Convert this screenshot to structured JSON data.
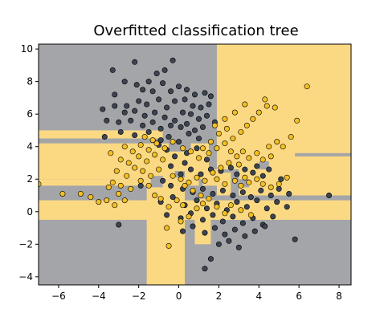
{
  "chart_data": {
    "type": "scatter",
    "title": "Overfitted classification tree",
    "xlabel": "",
    "ylabel": "",
    "xlim": [
      -7,
      8.6
    ],
    "ylim": [
      -4.5,
      10.3
    ],
    "x_ticks": [
      -6,
      -4,
      -2,
      0,
      2,
      4,
      6,
      8
    ],
    "y_ticks": [
      -4,
      -2,
      0,
      2,
      4,
      6,
      8,
      10
    ],
    "grid": false,
    "legend": "none",
    "colors": {
      "region_class_0": "#a3a5a8",
      "region_class_1": "#fbd983",
      "point_class_0": "#3d4451",
      "point_class_1": "#f4bf22",
      "point_edge": "#000000"
    },
    "decision_regions_class_1": [
      {
        "x": [
          1.9,
          8.6
        ],
        "y": [
          1.0,
          10.3
        ]
      },
      {
        "x": [
          -7,
          1.5
        ],
        "y": [
          2.0,
          4.2
        ]
      },
      {
        "x": [
          -7,
          -0.8
        ],
        "y": [
          4.5,
          5.0
        ]
      },
      {
        "x": [
          -7,
          1.0
        ],
        "y": [
          1.6,
          2.0
        ]
      },
      {
        "x": [
          -0.3,
          1.0
        ],
        "y": [
          2.5,
          3.2
        ]
      },
      {
        "x": [
          -7,
          8.6
        ],
        "y": [
          -0.5,
          0.7
        ]
      },
      {
        "x": [
          -1.6,
          0.3
        ],
        "y": [
          -4.5,
          1.6
        ]
      },
      {
        "x": [
          0.8,
          1.6
        ],
        "y": [
          -2.0,
          0.8
        ]
      },
      {
        "x": [
          1.2,
          2.7
        ],
        "y": [
          1.6,
          2.6
        ]
      },
      {
        "x": [
          -0.1,
          0.4
        ],
        "y": [
          3.5,
          4.2
        ]
      }
    ],
    "decision_regions_class_0": [
      {
        "x": [
          -0.5,
          0.6
        ],
        "y": [
          3.7,
          4.6
        ]
      },
      {
        "x": [
          -1.4,
          -0.8
        ],
        "y": [
          1.5,
          2.2
        ]
      },
      {
        "x": [
          -0.2,
          0.3
        ],
        "y": [
          2.1,
          2.5
        ]
      },
      {
        "x": [
          0.8,
          1.5
        ],
        "y": [
          1.2,
          1.5
        ]
      },
      {
        "x": [
          2.6,
          3.0
        ],
        "y": [
          1.0,
          2.6
        ]
      },
      {
        "x": [
          3.0,
          3.5
        ],
        "y": [
          1.5,
          2.0
        ]
      },
      {
        "x": [
          5.8,
          8.6
        ],
        "y": [
          3.4,
          3.6
        ]
      },
      {
        "x": [
          2.0,
          2.6
        ],
        "y": [
          2.4,
          2.6
        ]
      },
      {
        "x": [
          4.0,
          4.5
        ],
        "y": [
          2.6,
          3.1
        ]
      }
    ],
    "series": [
      {
        "class": 0,
        "points": [
          [
            -2.2,
            9.2
          ],
          [
            -0.3,
            9.3
          ],
          [
            -3.3,
            8.7
          ],
          [
            -2.7,
            8.0
          ],
          [
            -2.1,
            7.8
          ],
          [
            -1.5,
            8.0
          ],
          [
            -1.1,
            8.5
          ],
          [
            -0.7,
            8.7
          ],
          [
            -1.8,
            7.5
          ],
          [
            -1.3,
            7.4
          ],
          [
            -0.8,
            7.9
          ],
          [
            -0.4,
            7.4
          ],
          [
            0.0,
            7.7
          ],
          [
            0.4,
            7.5
          ],
          [
            0.8,
            7.2
          ],
          [
            1.3,
            7.3
          ],
          [
            1.6,
            7.1
          ],
          [
            -3.2,
            7.2
          ],
          [
            -2.6,
            6.5
          ],
          [
            -2.0,
            6.8
          ],
          [
            -1.6,
            6.6
          ],
          [
            -1.0,
            6.9
          ],
          [
            -0.6,
            6.4
          ],
          [
            -0.2,
            6.8
          ],
          [
            0.3,
            6.9
          ],
          [
            0.7,
            6.5
          ],
          [
            1.1,
            6.4
          ],
          [
            1.5,
            6.6
          ],
          [
            -3.8,
            6.3
          ],
          [
            -3.2,
            6.5
          ],
          [
            -2.7,
            6.1
          ],
          [
            -2.2,
            6.2
          ],
          [
            -1.7,
            5.9
          ],
          [
            -1.2,
            6.1
          ],
          [
            -0.7,
            5.8
          ],
          [
            -0.2,
            5.6
          ],
          [
            0.2,
            6.1
          ],
          [
            0.6,
            6.0
          ],
          [
            1.0,
            5.7
          ],
          [
            1.4,
            5.9
          ],
          [
            1.8,
            5.5
          ],
          [
            -3.6,
            5.6
          ],
          [
            -3.0,
            5.5
          ],
          [
            -2.4,
            5.6
          ],
          [
            -1.8,
            5.3
          ],
          [
            -1.3,
            5.5
          ],
          [
            -0.9,
            5.1
          ],
          [
            -0.4,
            5.3
          ],
          [
            0.1,
            5.2
          ],
          [
            0.4,
            5.4
          ],
          [
            0.8,
            5.0
          ],
          [
            1.2,
            5.2
          ],
          [
            -3.7,
            4.6
          ],
          [
            -2.9,
            4.9
          ],
          [
            -2.2,
            4.7
          ],
          [
            -1.5,
            4.9
          ],
          [
            -0.9,
            4.4
          ],
          [
            -0.5,
            4.6
          ],
          [
            0.0,
            4.3
          ],
          [
            0.5,
            4.8
          ],
          [
            1.0,
            4.5
          ],
          [
            -0.6,
            3.8
          ],
          [
            -0.2,
            3.4
          ],
          [
            0.4,
            3.6
          ],
          [
            0.9,
            3.9
          ],
          [
            1.4,
            3.2
          ],
          [
            -0.4,
            2.8
          ],
          [
            0.1,
            2.3
          ],
          [
            0.6,
            2.6
          ],
          [
            1.1,
            2.3
          ],
          [
            1.6,
            2.6
          ],
          [
            2.1,
            2.5
          ],
          [
            2.6,
            2.7
          ],
          [
            2.9,
            2.3
          ],
          [
            3.3,
            2.6
          ],
          [
            3.7,
            2.4
          ],
          [
            3.9,
            2.8
          ],
          [
            4.2,
            2.2
          ],
          [
            4.5,
            2.6
          ],
          [
            -0.8,
            1.9
          ],
          [
            -0.4,
            1.6
          ],
          [
            0.2,
            1.4
          ],
          [
            0.7,
            1.2
          ],
          [
            1.2,
            1.4
          ],
          [
            1.7,
            1.1
          ],
          [
            2.2,
            1.3
          ],
          [
            2.7,
            1.0
          ],
          [
            3.2,
            1.2
          ],
          [
            3.6,
            0.9
          ],
          [
            4.1,
            1.3
          ],
          [
            4.6,
            1.0
          ],
          [
            5.0,
            1.4
          ],
          [
            5.5,
            1.1
          ],
          [
            -0.9,
            0.6
          ],
          [
            -0.3,
            0.9
          ],
          [
            0.3,
            0.4
          ],
          [
            0.9,
            0.7
          ],
          [
            1.4,
            0.2
          ],
          [
            1.9,
            0.5
          ],
          [
            2.4,
            0.1
          ],
          [
            2.9,
            0.6
          ],
          [
            3.4,
            0.3
          ],
          [
            3.9,
            0.7
          ],
          [
            4.4,
            0.2
          ],
          [
            4.9,
            0.6
          ],
          [
            5.4,
            0.3
          ],
          [
            -0.6,
            -0.2
          ],
          [
            0.1,
            -0.4
          ],
          [
            0.6,
            -0.1
          ],
          [
            1.2,
            -0.5
          ],
          [
            1.7,
            -0.2
          ],
          [
            2.2,
            -0.6
          ],
          [
            2.7,
            -0.3
          ],
          [
            3.2,
            -0.7
          ],
          [
            3.7,
            -0.4
          ],
          [
            4.2,
            -0.8
          ],
          [
            4.7,
            -0.3
          ],
          [
            0.2,
            -1.2
          ],
          [
            0.7,
            -0.9
          ],
          [
            1.3,
            -1.3
          ],
          [
            1.8,
            -1.0
          ],
          [
            2.3,
            -1.4
          ],
          [
            2.8,
            -1.1
          ],
          [
            3.3,
            -1.5
          ],
          [
            3.8,
            -1.2
          ],
          [
            4.3,
            -0.9
          ],
          [
            2.0,
            -2.0
          ],
          [
            2.5,
            -1.8
          ],
          [
            3.0,
            -2.2
          ],
          [
            5.8,
            -1.7
          ],
          [
            1.3,
            -3.5
          ],
          [
            1.6,
            -2.9
          ],
          [
            -3.0,
            -0.8
          ],
          [
            7.5,
            1.0
          ],
          [
            5.1,
            2.0
          ],
          [
            -1.9,
            1.6
          ],
          [
            -1.0,
            4.1
          ],
          [
            0.3,
            3.0
          ]
        ]
      },
      {
        "class": 1,
        "points": [
          [
            -7.0,
            1.7
          ],
          [
            -5.8,
            1.1
          ],
          [
            -4.9,
            1.1
          ],
          [
            -4.4,
            0.9
          ],
          [
            -4.0,
            0.6
          ],
          [
            -3.6,
            0.7
          ],
          [
            -3.2,
            0.4
          ],
          [
            -3.0,
            1.1
          ],
          [
            -2.7,
            0.7
          ],
          [
            -3.5,
            1.5
          ],
          [
            -3.3,
            1.8
          ],
          [
            -2.9,
            1.6
          ],
          [
            -2.4,
            1.4
          ],
          [
            -1.9,
            1.9
          ],
          [
            -1.5,
            1.6
          ],
          [
            -1.2,
            1.0
          ],
          [
            -3.1,
            2.5
          ],
          [
            -2.6,
            2.2
          ],
          [
            -2.2,
            2.7
          ],
          [
            -1.8,
            2.5
          ],
          [
            -1.4,
            2.2
          ],
          [
            -1.0,
            2.6
          ],
          [
            -2.9,
            3.2
          ],
          [
            -2.5,
            3.0
          ],
          [
            -2.0,
            3.4
          ],
          [
            -1.6,
            3.1
          ],
          [
            -1.2,
            3.5
          ],
          [
            -0.8,
            3.2
          ],
          [
            -3.4,
            3.6
          ],
          [
            -2.7,
            4.0
          ],
          [
            -2.3,
            3.7
          ],
          [
            -1.9,
            4.1
          ],
          [
            -1.5,
            3.8
          ],
          [
            -1.1,
            4.2
          ],
          [
            -0.7,
            3.9
          ],
          [
            -0.3,
            4.3
          ],
          [
            -1.7,
            4.6
          ],
          [
            -1.3,
            4.4
          ],
          [
            0.2,
            3.9
          ],
          [
            0.6,
            3.7
          ],
          [
            1.0,
            3.3
          ],
          [
            1.5,
            3.6
          ],
          [
            1.9,
            3.9
          ],
          [
            2.3,
            4.2
          ],
          [
            2.7,
            4.5
          ],
          [
            3.1,
            4.9
          ],
          [
            3.4,
            5.3
          ],
          [
            3.7,
            5.7
          ],
          [
            4.0,
            6.1
          ],
          [
            4.4,
            6.5
          ],
          [
            4.8,
            6.4
          ],
          [
            4.3,
            6.9
          ],
          [
            3.3,
            6.6
          ],
          [
            2.8,
            6.1
          ],
          [
            2.3,
            5.7
          ],
          [
            1.8,
            5.3
          ],
          [
            2.9,
            3.4
          ],
          [
            3.2,
            3.7
          ],
          [
            3.5,
            3.3
          ],
          [
            3.9,
            3.6
          ],
          [
            4.2,
            3.2
          ],
          [
            4.6,
            3.4
          ],
          [
            2.5,
            3.0
          ],
          [
            2.1,
            2.7
          ],
          [
            1.7,
            2.4
          ],
          [
            1.9,
            2.0
          ],
          [
            2.3,
            1.7
          ],
          [
            2.8,
            1.9
          ],
          [
            3.1,
            1.6
          ],
          [
            3.5,
            1.8
          ],
          [
            3.9,
            2.0
          ],
          [
            4.2,
            1.7
          ],
          [
            4.6,
            1.5
          ],
          [
            5.0,
            1.7
          ],
          [
            1.3,
            1.9
          ],
          [
            0.9,
            2.1
          ],
          [
            0.5,
            1.8
          ],
          [
            0.1,
            2.0
          ],
          [
            -0.3,
            2.2
          ],
          [
            0.3,
            1.6
          ],
          [
            0.7,
            1.3
          ],
          [
            1.1,
            1.0
          ],
          [
            1.5,
            0.8
          ],
          [
            1.2,
            0.5
          ],
          [
            0.9,
            0.2
          ],
          [
            0.5,
            -0.3
          ],
          [
            0.2,
            0.4
          ],
          [
            -0.1,
            0.7
          ],
          [
            -0.5,
            0.3
          ],
          [
            -0.9,
            0.8
          ],
          [
            0.1,
            -0.6
          ],
          [
            -0.6,
            -1.0
          ],
          [
            -0.5,
            -2.1
          ],
          [
            1.9,
            0.3
          ],
          [
            2.3,
            -0.1
          ],
          [
            2.6,
            0.4
          ],
          [
            3.1,
            0.1
          ],
          [
            3.6,
            -0.2
          ],
          [
            3.0,
            2.9
          ],
          [
            3.3,
            2.1
          ],
          [
            4.5,
            4.0
          ],
          [
            4.9,
            4.3
          ],
          [
            5.2,
            4.0
          ],
          [
            5.6,
            4.6
          ],
          [
            5.9,
            5.6
          ],
          [
            6.4,
            7.7
          ],
          [
            5.4,
            2.1
          ],
          [
            2.0,
            4.8
          ],
          [
            2.4,
            5.1
          ],
          [
            1.6,
            4.3
          ],
          [
            1.2,
            3.9
          ],
          [
            2.6,
            3.7
          ]
        ]
      }
    ]
  }
}
